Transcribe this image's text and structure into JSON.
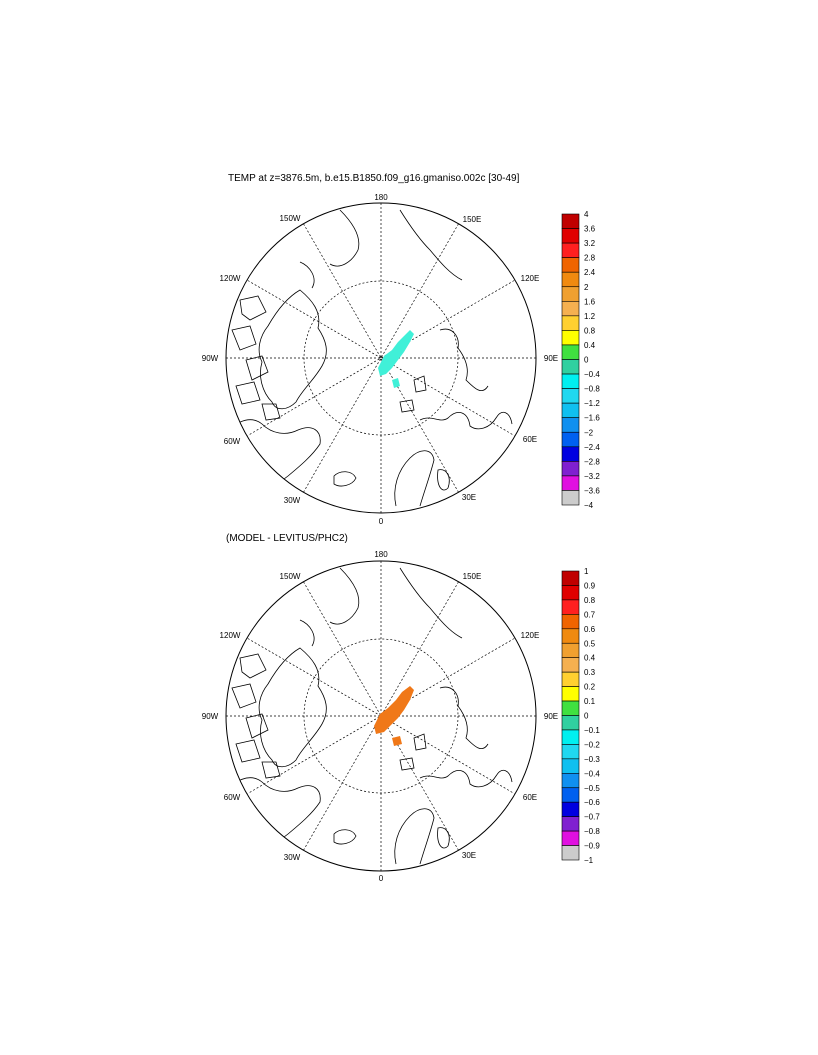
{
  "titles": {
    "top": "TEMP at z=3876.5m, b.e15.B1850.f09_g16.gmaniso.002c [30-49]",
    "bottom": "(MODEL - LEVITUS/PHC2)"
  },
  "lon_labels": {
    "n180": "180",
    "n150e": "150E",
    "n120e": "120E",
    "n90e": "90E",
    "n60e": "60E",
    "n30e": "30E",
    "n0": "0",
    "n30w": "30W",
    "n60w": "60W",
    "n90w": "90W",
    "n120w": "120W",
    "n150w": "150W"
  },
  "top_colorbar": {
    "labels": [
      "4",
      "3.6",
      "3.2",
      "2.8",
      "2.4",
      "2",
      "1.6",
      "1.2",
      "0.8",
      "0.4",
      "0",
      "−0.4",
      "−0.8",
      "−1.2",
      "−1.6",
      "−2",
      "−2.4",
      "−2.8",
      "−3.2",
      "−3.6",
      "−4"
    ],
    "colors": [
      "#c00000",
      "#e00000",
      "#ff2020",
      "#f06400",
      "#f08a10",
      "#f0a030",
      "#f5b050",
      "#ffd030",
      "#ffff00",
      "#40e040",
      "#30d0a0",
      "#00f0f0",
      "#20d8f0",
      "#10c0f0",
      "#1090f0",
      "#0060f0",
      "#0000e0",
      "#8020d0",
      "#e010e0",
      "#cccccc"
    ]
  },
  "bottom_colorbar": {
    "labels": [
      "1",
      "0.9",
      "0.8",
      "0.7",
      "0.6",
      "0.5",
      "0.4",
      "0.3",
      "0.2",
      "0.1",
      "0",
      "−0.1",
      "−0.2",
      "−0.3",
      "−0.4",
      "−0.5",
      "−0.6",
      "−0.7",
      "−0.8",
      "−0.9",
      "−1"
    ],
    "colors": [
      "#c00000",
      "#e00000",
      "#ff2020",
      "#f06400",
      "#f08a10",
      "#f0a030",
      "#f5b050",
      "#ffd030",
      "#ffff00",
      "#40e040",
      "#30d0a0",
      "#00f0f0",
      "#20d8f0",
      "#10c0f0",
      "#1090f0",
      "#0060f0",
      "#0000e0",
      "#8020d0",
      "#e010e0",
      "#cccccc"
    ]
  },
  "top_field_color": "#40f0d8",
  "bottom_field_color": "#f07818"
}
